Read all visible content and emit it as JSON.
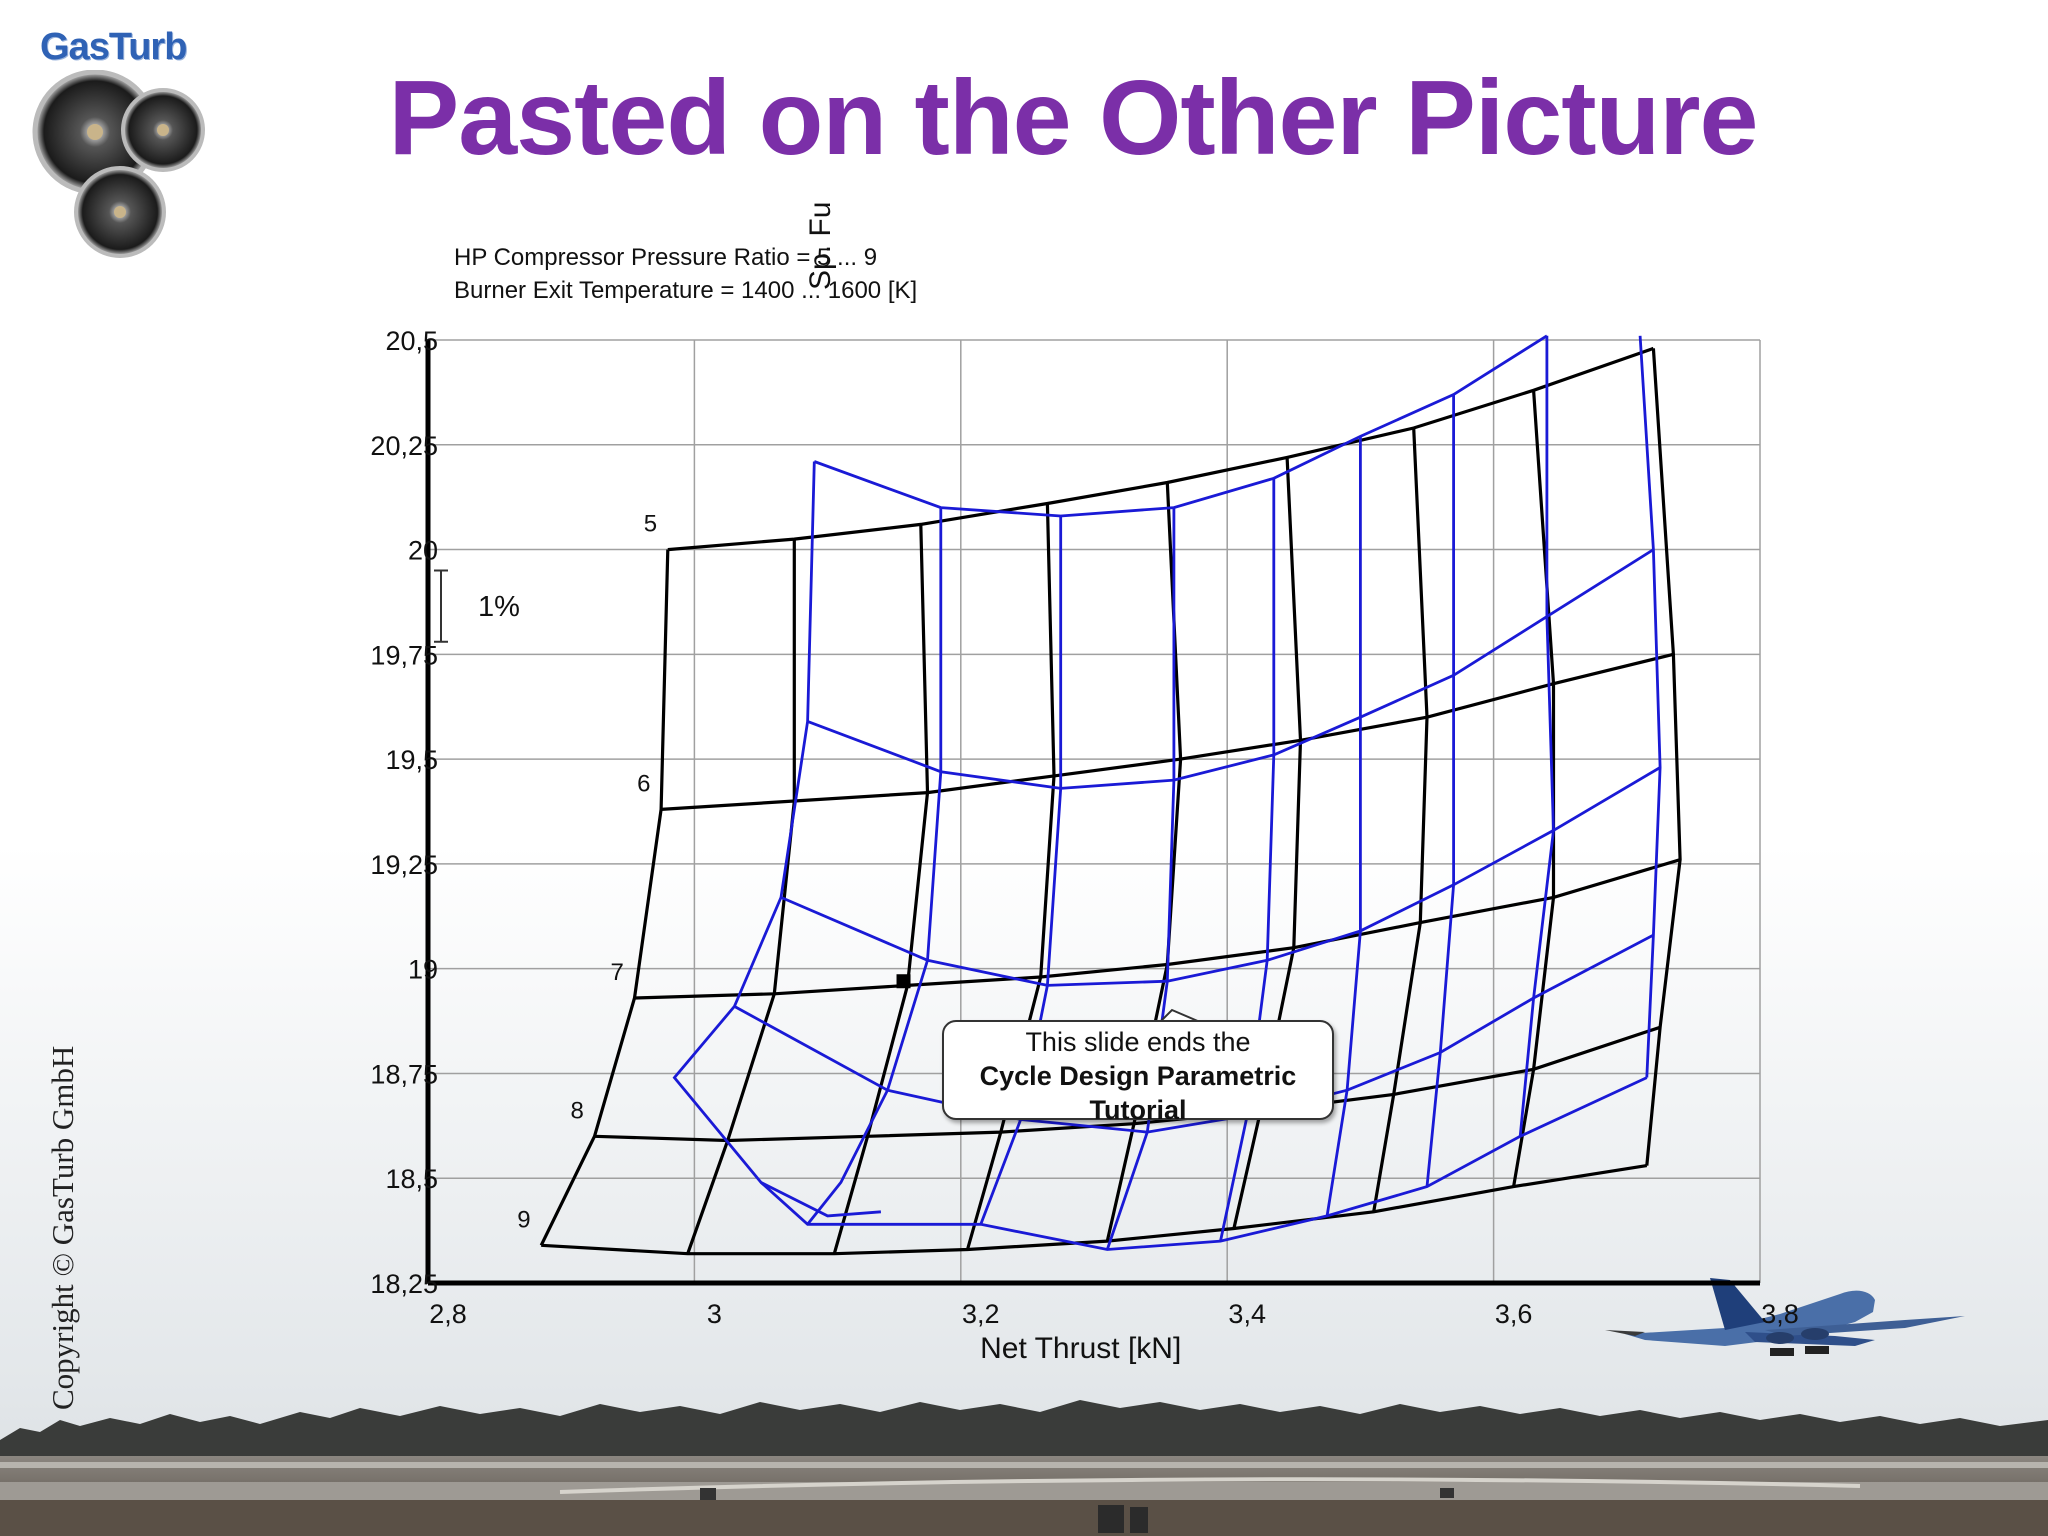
{
  "slide": {
    "title": "Pasted on the Other Picture",
    "title_color": "#7b2fa8",
    "logo_text": "GasTurb",
    "copyright": "Copyright © GasTurb GmbH",
    "icons": [
      "turbofan-engines-logo-icon",
      "airplane-takeoff-photo-icon"
    ]
  },
  "chart_notes": {
    "line1": "HP Compressor Pressure Ratio = 5 ... 9",
    "line2": "Burner Exit Temperature = 1400 ... 1600 [K]",
    "rotated_fragment": "Sp. Fu"
  },
  "callout": {
    "line1": "This slide ends the",
    "line2": "Cycle Design Parametric",
    "line3": "Tutorial"
  },
  "chart_data": {
    "type": "line",
    "title": "",
    "xlabel": "Net Thrust [kN]",
    "ylabel": "",
    "xlim": [
      2.8,
      3.8
    ],
    "ylim": [
      18.25,
      20.5
    ],
    "xticks": [
      "2,8",
      "3",
      "3,2",
      "3,4",
      "3,6",
      "3,8"
    ],
    "yticks": [
      "20,5",
      "20,25",
      "20",
      "19,75",
      "19,5",
      "19,25",
      "19",
      "18,75",
      "18,5",
      "18,25"
    ],
    "xtick_values": [
      2.8,
      3.0,
      3.2,
      3.4,
      3.6,
      3.8
    ],
    "ytick_values": [
      20.5,
      20.25,
      20.0,
      19.75,
      19.5,
      19.25,
      19.0,
      18.75,
      18.5,
      18.25
    ],
    "grid": true,
    "scale_bar_label": "1%",
    "scale_bar_range": [
      19.78,
      19.95
    ],
    "design_point": [
      3.157,
      18.97
    ],
    "series": [
      {
        "color": "#000000",
        "grid_labels": [
          "5",
          "6",
          "7",
          "8",
          "9"
        ],
        "pressure_ratio_lines": [
          [
            [
              2.98,
              20.0
            ],
            [
              3.075,
              20.025
            ],
            [
              3.17,
              20.06
            ],
            [
              3.265,
              20.11
            ],
            [
              3.355,
              20.16
            ],
            [
              3.445,
              20.22
            ],
            [
              3.54,
              20.29
            ],
            [
              3.63,
              20.38
            ],
            [
              3.72,
              20.48
            ]
          ],
          [
            [
              2.975,
              19.38
            ],
            [
              3.075,
              19.4
            ],
            [
              3.175,
              19.42
            ],
            [
              3.27,
              19.46
            ],
            [
              3.365,
              19.5
            ],
            [
              3.455,
              19.545
            ],
            [
              3.55,
              19.6
            ],
            [
              3.645,
              19.68
            ],
            [
              3.735,
              19.75
            ]
          ],
          [
            [
              2.955,
              18.93
            ],
            [
              3.06,
              18.94
            ],
            [
              3.16,
              18.96
            ],
            [
              3.26,
              18.98
            ],
            [
              3.355,
              19.01
            ],
            [
              3.45,
              19.05
            ],
            [
              3.545,
              19.11
            ],
            [
              3.645,
              19.17
            ],
            [
              3.74,
              19.26
            ]
          ],
          [
            [
              2.925,
              18.6
            ],
            [
              3.025,
              18.59
            ],
            [
              3.13,
              18.6
            ],
            [
              3.23,
              18.61
            ],
            [
              3.33,
              18.63
            ],
            [
              3.425,
              18.66
            ],
            [
              3.525,
              18.7
            ],
            [
              3.63,
              18.76
            ],
            [
              3.725,
              18.86
            ]
          ],
          [
            [
              2.885,
              18.34
            ],
            [
              2.995,
              18.32
            ],
            [
              3.105,
              18.32
            ],
            [
              3.205,
              18.33
            ],
            [
              3.31,
              18.35
            ],
            [
              3.405,
              18.38
            ],
            [
              3.51,
              18.42
            ],
            [
              3.615,
              18.48
            ],
            [
              3.715,
              18.53
            ]
          ]
        ]
      },
      {
        "color": "#1a1ad6",
        "temperature_lines": [
          [
            [
              3.09,
              20.21
            ],
            [
              3.085,
              19.59
            ],
            [
              3.065,
              19.17
            ],
            [
              3.03,
              18.91
            ],
            [
              2.985,
              18.74
            ],
            [
              3.05,
              18.49
            ],
            [
              3.1,
              18.41
            ],
            [
              3.14,
              18.42
            ]
          ],
          [
            [
              3.185,
              20.1
            ],
            [
              3.185,
              19.47
            ],
            [
              3.175,
              19.02
            ],
            [
              3.145,
              18.71
            ],
            [
              3.11,
              18.49
            ],
            [
              3.085,
              18.39
            ]
          ],
          [
            [
              3.275,
              20.08
            ],
            [
              3.275,
              19.43
            ],
            [
              3.265,
              18.96
            ],
            [
              3.245,
              18.64
            ],
            [
              3.215,
              18.39
            ]
          ],
          [
            [
              3.36,
              20.1
            ],
            [
              3.36,
              19.45
            ],
            [
              3.355,
              18.97
            ],
            [
              3.34,
              18.61
            ],
            [
              3.31,
              18.33
            ]
          ],
          [
            [
              3.435,
              20.17
            ],
            [
              3.435,
              19.51
            ],
            [
              3.43,
              19.02
            ],
            [
              3.415,
              18.65
            ],
            [
              3.395,
              18.35
            ]
          ],
          [
            [
              3.5,
              20.27
            ],
            [
              3.5,
              19.6
            ],
            [
              3.5,
              19.09
            ],
            [
              3.49,
              18.71
            ],
            [
              3.475,
              18.41
            ]
          ],
          [
            [
              3.57,
              20.37
            ],
            [
              3.57,
              19.7
            ],
            [
              3.57,
              19.2
            ],
            [
              3.56,
              18.8
            ],
            [
              3.55,
              18.48
            ]
          ],
          [
            [
              3.64,
              20.51
            ],
            [
              3.64,
              19.84
            ],
            [
              3.645,
              19.33
            ],
            [
              3.63,
              18.93
            ],
            [
              3.62,
              18.6
            ]
          ],
          [
            [
              3.71,
              20.51
            ],
            [
              3.72,
              20.0
            ],
            [
              3.725,
              19.48
            ],
            [
              3.72,
              19.08
            ],
            [
              3.715,
              18.74
            ]
          ]
        ],
        "shape_lines": [
          [
            [
              3.09,
              20.21
            ],
            [
              3.185,
              20.1
            ],
            [
              3.275,
              20.08
            ],
            [
              3.36,
              20.1
            ],
            [
              3.435,
              20.17
            ],
            [
              3.5,
              20.27
            ],
            [
              3.57,
              20.37
            ],
            [
              3.64,
              20.51
            ]
          ],
          [
            [
              3.085,
              19.59
            ],
            [
              3.185,
              19.47
            ],
            [
              3.275,
              19.43
            ],
            [
              3.36,
              19.45
            ],
            [
              3.435,
              19.51
            ],
            [
              3.5,
              19.6
            ],
            [
              3.57,
              19.7
            ],
            [
              3.64,
              19.84
            ],
            [
              3.72,
              20.0
            ]
          ],
          [
            [
              3.065,
              19.17
            ],
            [
              3.175,
              19.02
            ],
            [
              3.265,
              18.96
            ],
            [
              3.355,
              18.97
            ],
            [
              3.43,
              19.02
            ],
            [
              3.5,
              19.09
            ],
            [
              3.57,
              19.2
            ],
            [
              3.645,
              19.33
            ],
            [
              3.725,
              19.48
            ]
          ],
          [
            [
              3.03,
              18.91
            ],
            [
              3.145,
              18.71
            ],
            [
              3.245,
              18.64
            ],
            [
              3.34,
              18.61
            ],
            [
              3.415,
              18.65
            ],
            [
              3.49,
              18.71
            ],
            [
              3.56,
              18.8
            ],
            [
              3.63,
              18.93
            ],
            [
              3.72,
              19.08
            ]
          ],
          [
            [
              3.05,
              18.49
            ],
            [
              3.085,
              18.39
            ],
            [
              3.215,
              18.39
            ],
            [
              3.31,
              18.33
            ],
            [
              3.395,
              18.35
            ],
            [
              3.475,
              18.41
            ],
            [
              3.55,
              18.48
            ],
            [
              3.62,
              18.6
            ],
            [
              3.715,
              18.74
            ]
          ]
        ]
      }
    ]
  }
}
